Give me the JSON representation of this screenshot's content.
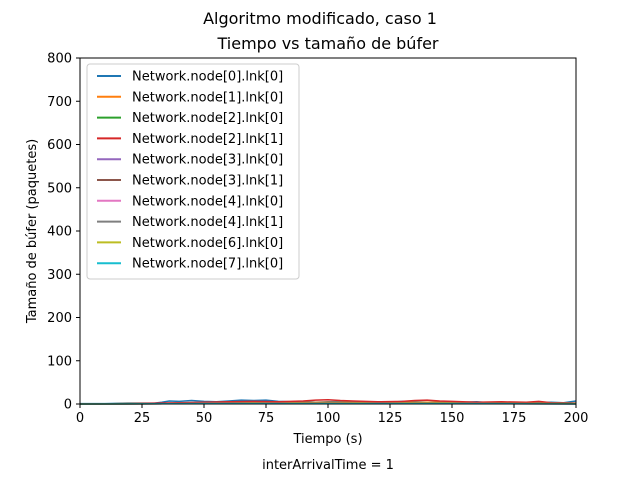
{
  "chart_data": {
    "type": "line",
    "suptitle": "Algoritmo modificado, caso 1",
    "title": "Tiempo vs tamaño de búfer",
    "xlabel": "Tiempo (s)",
    "ylabel": "Tamaño de búfer (paquetes)",
    "footnote": "interArrivalTime = 1",
    "xlim": [
      0,
      200
    ],
    "ylim": [
      0,
      800
    ],
    "xticks": [
      0,
      25,
      50,
      75,
      100,
      125,
      150,
      175,
      200
    ],
    "yticks": [
      0,
      100,
      200,
      300,
      400,
      500,
      600,
      700,
      800
    ],
    "grid": false,
    "legend_position": "top-left",
    "series": [
      {
        "name": "Network.node[0].lnk[0]",
        "color": "#1f77b4",
        "x": [
          0,
          10,
          20,
          30,
          33,
          36,
          40,
          45,
          50,
          55,
          60,
          65,
          70,
          75,
          80,
          85,
          90,
          95,
          100,
          105,
          110,
          115,
          120,
          125,
          130,
          135,
          140,
          145,
          150,
          155,
          160,
          165,
          170,
          175,
          180,
          185,
          190,
          195,
          200
        ],
        "values": [
          1,
          1,
          2,
          2,
          4,
          7,
          6,
          8,
          6,
          5,
          7,
          9,
          8,
          9,
          6,
          5,
          6,
          4,
          5,
          6,
          5,
          4,
          5,
          4,
          6,
          5,
          4,
          5,
          3,
          4,
          5,
          3,
          4,
          3,
          4,
          3,
          4,
          3,
          7
        ]
      },
      {
        "name": "Network.node[1].lnk[0]",
        "color": "#ff7f0e",
        "x": [
          0,
          20,
          40,
          60,
          80,
          100,
          120,
          140,
          160,
          180,
          200
        ],
        "values": [
          0,
          1,
          2,
          3,
          3,
          4,
          3,
          4,
          3,
          2,
          2
        ]
      },
      {
        "name": "Network.node[2].lnk[0]",
        "color": "#2ca02c",
        "x": [
          0,
          20,
          40,
          60,
          80,
          100,
          120,
          140,
          160,
          180,
          200
        ],
        "values": [
          0,
          1,
          1,
          2,
          2,
          2,
          2,
          2,
          2,
          1,
          1
        ]
      },
      {
        "name": "Network.node[2].lnk[1]",
        "color": "#d62728",
        "x": [
          0,
          20,
          40,
          60,
          70,
          80,
          90,
          95,
          100,
          105,
          110,
          120,
          130,
          135,
          140,
          145,
          150,
          160,
          170,
          180,
          185,
          190,
          200
        ],
        "values": [
          0,
          1,
          3,
          5,
          6,
          5,
          7,
          9,
          10,
          8,
          7,
          5,
          6,
          8,
          9,
          7,
          6,
          4,
          5,
          4,
          6,
          3,
          2
        ]
      },
      {
        "name": "Network.node[3].lnk[0]",
        "color": "#9467bd",
        "x": [
          0,
          50,
          100,
          150,
          200
        ],
        "values": [
          0,
          1,
          1,
          1,
          1
        ]
      },
      {
        "name": "Network.node[3].lnk[1]",
        "color": "#8c564b",
        "x": [
          0,
          50,
          100,
          150,
          200
        ],
        "values": [
          0,
          1,
          2,
          1,
          1
        ]
      },
      {
        "name": "Network.node[4].lnk[0]",
        "color": "#e377c2",
        "x": [
          0,
          50,
          100,
          150,
          200
        ],
        "values": [
          0,
          1,
          1,
          1,
          0
        ]
      },
      {
        "name": "Network.node[4].lnk[1]",
        "color": "#7f7f7f",
        "x": [
          0,
          50,
          100,
          150,
          200
        ],
        "values": [
          0,
          1,
          1,
          1,
          1
        ]
      },
      {
        "name": "Network.node[6].lnk[0]",
        "color": "#bcbd22",
        "x": [
          0,
          50,
          100,
          150,
          200
        ],
        "values": [
          0,
          1,
          1,
          1,
          1
        ]
      },
      {
        "name": "Network.node[7].lnk[0]",
        "color": "#17becf",
        "x": [
          0,
          50,
          100,
          150,
          200
        ],
        "values": [
          0,
          1,
          1,
          1,
          0
        ]
      }
    ]
  }
}
